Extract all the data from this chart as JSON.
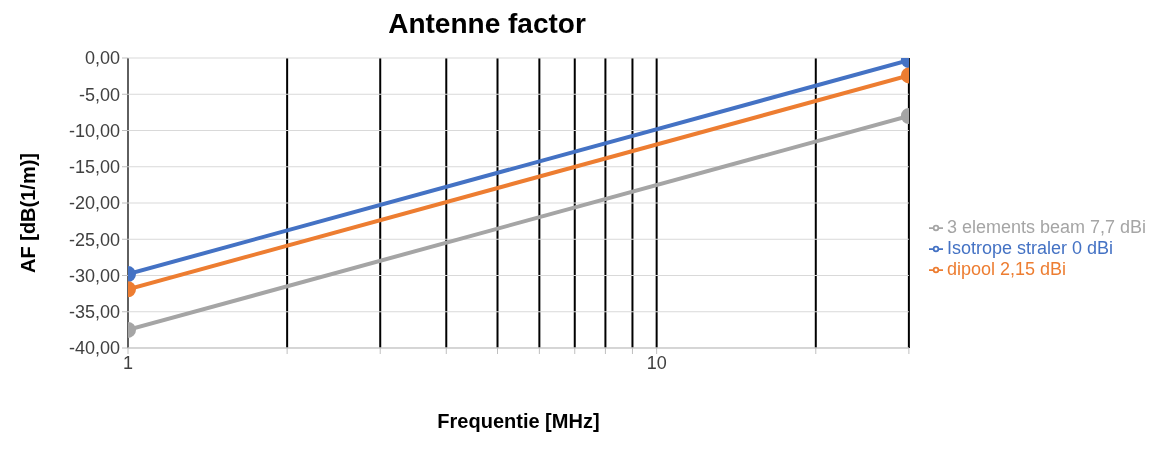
{
  "chart_data": {
    "type": "line",
    "title": "Antenne factor",
    "xlabel": "Frequentie [MHz]",
    "ylabel": "AF [dB(1/m)]",
    "x": [
      1,
      30
    ],
    "series": [
      {
        "name": "Isotrope straler 0 dBi",
        "color": "#4472c4",
        "values": [
          -29.8,
          -0.3
        ]
      },
      {
        "name": "dipool 2,15 dBi",
        "color": "#ed7d31",
        "values": [
          -31.9,
          -2.4
        ]
      },
      {
        "name": "3 elements beam 7,7 dBi",
        "color": "#a5a5a5",
        "values": [
          -37.5,
          -8.0
        ]
      }
    ],
    "log": "x",
    "xlim": [
      1,
      30
    ],
    "xticks": [
      1,
      {
        "value": 2,
        "label": null
      },
      {
        "value": 3,
        "label": null
      },
      {
        "value": 4,
        "label": null
      },
      {
        "value": 5,
        "label": null
      },
      {
        "value": 6,
        "label": null
      },
      {
        "value": 7,
        "label": null
      },
      {
        "value": 8,
        "label": null
      },
      {
        "value": 9,
        "label": null
      },
      10,
      {
        "value": 20,
        "label": null
      },
      {
        "value": 30,
        "label": null
      }
    ],
    "ylim": [
      -40,
      0
    ],
    "yticks": [
      {
        "value": -40,
        "label": "-40,00"
      },
      {
        "value": -35,
        "label": "-35,00"
      },
      {
        "value": -30,
        "label": "-30,00"
      },
      {
        "value": -25,
        "label": "-25,00"
      },
      {
        "value": -20,
        "label": "-20,00"
      },
      {
        "value": -15,
        "label": "-15,00"
      },
      {
        "value": -10,
        "label": "-10,00"
      },
      {
        "value": -5,
        "label": "-5,00"
      },
      {
        "value": 0,
        "label": "0,00"
      }
    ],
    "grid": true,
    "legend": "right",
    "marker": "circle",
    "line_style": "solid"
  }
}
